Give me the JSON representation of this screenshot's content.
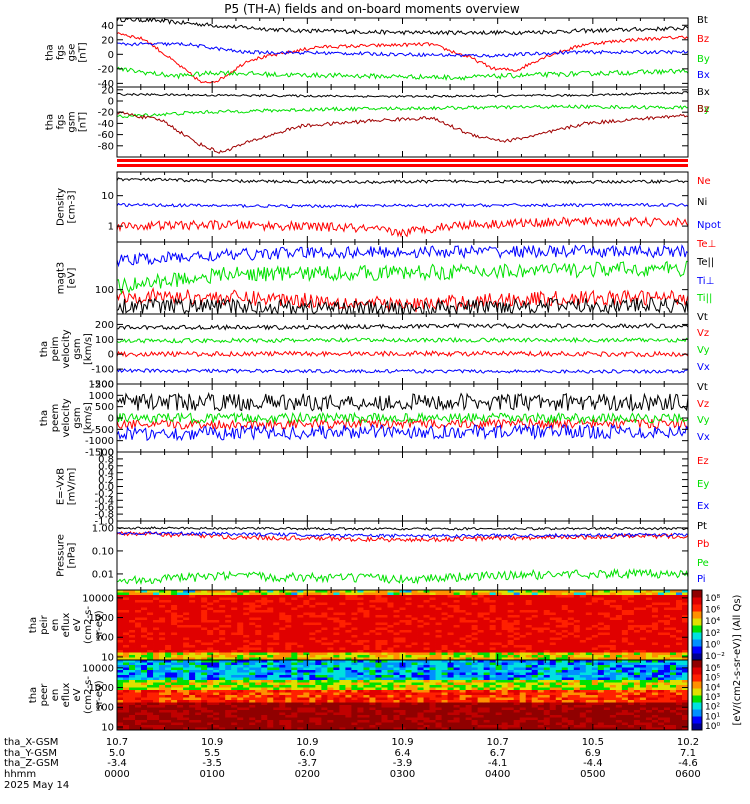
{
  "title": "P5 (TH-A) fields and on-board moments overview",
  "colors": {
    "black": "#000000",
    "red": "#ff0000",
    "green": "#00e000",
    "blue": "#0000ff",
    "darkred": "#a00000"
  },
  "chart_data": [
    {
      "id": "fgs_gse",
      "type": "line",
      "ylabel": [
        "tha",
        "fgs",
        "gse",
        "[nT]"
      ],
      "ylim": [
        -45,
        50
      ],
      "ticks": [
        "40",
        "20",
        "0",
        "-20",
        "-40"
      ],
      "tick_values": [
        40,
        20,
        0,
        -20,
        -40
      ],
      "series": [
        {
          "name": "Bt",
          "color": "black",
          "points": [
            [
              0,
              48
            ],
            [
              0.06,
              47
            ],
            [
              0.12,
              43
            ],
            [
              0.2,
              38
            ],
            [
              0.3,
              33
            ],
            [
              0.5,
              30
            ],
            [
              0.7,
              30
            ],
            [
              0.85,
              33
            ],
            [
              1,
              36
            ]
          ]
        },
        {
          "name": "Bz",
          "color": "red",
          "points": [
            [
              0,
              30
            ],
            [
              0.05,
              20
            ],
            [
              0.1,
              -10
            ],
            [
              0.15,
              -40
            ],
            [
              0.18,
              -35
            ],
            [
              0.23,
              -8
            ],
            [
              0.35,
              10
            ],
            [
              0.55,
              14
            ],
            [
              0.62,
              -5
            ],
            [
              0.66,
              -20
            ],
            [
              0.7,
              -22
            ],
            [
              0.75,
              -3
            ],
            [
              0.82,
              14
            ],
            [
              0.9,
              20
            ],
            [
              1,
              24
            ]
          ]
        },
        {
          "name": "By",
          "color": "green",
          "points": [
            [
              0,
              -20
            ],
            [
              0.1,
              -30
            ],
            [
              0.18,
              -25
            ],
            [
              0.28,
              -28
            ],
            [
              0.45,
              -30
            ],
            [
              0.6,
              -32
            ],
            [
              0.75,
              -28
            ],
            [
              0.9,
              -25
            ],
            [
              1,
              -23
            ]
          ]
        },
        {
          "name": "Bx",
          "color": "blue",
          "points": [
            [
              0,
              14
            ],
            [
              0.12,
              14
            ],
            [
              0.22,
              3
            ],
            [
              0.35,
              2
            ],
            [
              0.5,
              0
            ],
            [
              0.65,
              -2
            ],
            [
              0.8,
              3
            ],
            [
              0.9,
              3
            ],
            [
              1,
              3
            ]
          ]
        }
      ]
    },
    {
      "id": "fgs_gsm",
      "type": "line",
      "ylabel": [
        "tha",
        "fgs",
        "gsm",
        "[nT]"
      ],
      "ylim": [
        -100,
        25
      ],
      "ticks": [
        "20",
        "0",
        "-20",
        "-40",
        "-60",
        "-80"
      ],
      "tick_values": [
        20,
        0,
        -20,
        -40,
        -60,
        -80
      ],
      "series": [
        {
          "name": "Bx",
          "color": "black",
          "points": [
            [
              0,
              12
            ],
            [
              0.2,
              10
            ],
            [
              0.5,
              8
            ],
            [
              0.8,
              10
            ],
            [
              1,
              15
            ]
          ]
        },
        {
          "name": "By",
          "color": "green",
          "points": [
            [
              0,
              -28
            ],
            [
              0.15,
              -20
            ],
            [
              0.35,
              -15
            ],
            [
              0.6,
              -12
            ],
            [
              0.8,
              -10
            ],
            [
              1,
              -12
            ]
          ]
        },
        {
          "name": "Bz",
          "color": "darkred",
          "points": [
            [
              0,
              -20
            ],
            [
              0.08,
              -35
            ],
            [
              0.14,
              -75
            ],
            [
              0.18,
              -92
            ],
            [
              0.24,
              -70
            ],
            [
              0.32,
              -45
            ],
            [
              0.45,
              -35
            ],
            [
              0.55,
              -30
            ],
            [
              0.62,
              -60
            ],
            [
              0.68,
              -72
            ],
            [
              0.74,
              -60
            ],
            [
              0.82,
              -40
            ],
            [
              1,
              -25
            ]
          ]
        }
      ]
    },
    {
      "id": "density",
      "type": "line",
      "ylabel": [
        "Density",
        "[cm-3]"
      ],
      "ylog": true,
      "ylim": [
        0.3,
        60
      ],
      "ticks": [
        "10",
        "1"
      ],
      "tick_values": [
        10,
        1
      ],
      "series": [
        {
          "name": "Ne",
          "color": "red",
          "points": [
            [
              0,
              1
            ],
            [
              0.2,
              1.1
            ],
            [
              0.4,
              0.9
            ],
            [
              0.5,
              0.6
            ],
            [
              0.6,
              1.1
            ],
            [
              0.8,
              1.4
            ],
            [
              1,
              1.3
            ]
          ]
        },
        {
          "name": "Ni",
          "color": "black",
          "points": [
            [
              0,
              35
            ],
            [
              0.2,
              30
            ],
            [
              0.45,
              28
            ],
            [
              0.6,
              30
            ],
            [
              0.8,
              28
            ],
            [
              1,
              30
            ]
          ]
        },
        {
          "name": "Npot",
          "color": "blue",
          "points": [
            [
              0,
              5
            ],
            [
              0.3,
              4.5
            ],
            [
              0.6,
              4.8
            ],
            [
              1,
              5
            ]
          ]
        }
      ]
    },
    {
      "id": "temperature",
      "type": "line",
      "ylabel": [
        "magt3",
        "[eV]"
      ],
      "ylog": true,
      "ylim": [
        40,
        600
      ],
      "ticks": [
        "100"
      ],
      "tick_values": [
        100
      ],
      "series": [
        {
          "name": "Te⊥",
          "color": "red",
          "points": [
            [
              0,
              80
            ],
            [
              0.3,
              70
            ],
            [
              0.5,
              55
            ],
            [
              0.7,
              70
            ],
            [
              1,
              75
            ]
          ]
        },
        {
          "name": "Te||",
          "color": "black",
          "points": [
            [
              0,
              55
            ],
            [
              0.3,
              52
            ],
            [
              0.5,
              48
            ],
            [
              0.7,
              55
            ],
            [
              1,
              55
            ]
          ]
        },
        {
          "name": "Ti⊥",
          "color": "blue",
          "points": [
            [
              0,
              300
            ],
            [
              0.3,
              400
            ],
            [
              0.6,
              420
            ],
            [
              1,
              420
            ]
          ]
        },
        {
          "name": "Ti||",
          "color": "green",
          "points": [
            [
              0,
              110
            ],
            [
              0.2,
              180
            ],
            [
              0.5,
              190
            ],
            [
              0.8,
              210
            ],
            [
              1,
              220
            ]
          ]
        }
      ]
    },
    {
      "id": "peim_velocity",
      "type": "line",
      "ylabel": [
        "tha",
        "peim",
        "velocity",
        "gsm",
        "[km/s]"
      ],
      "ylim": [
        -200,
        270
      ],
      "ticks": [
        "200",
        "100",
        "0",
        "-100",
        "-200"
      ],
      "tick_values": [
        200,
        100,
        0,
        -100,
        -200
      ],
      "series": [
        {
          "name": "Vt",
          "color": "black",
          "points": [
            [
              0,
              180
            ],
            [
              0.3,
              180
            ],
            [
              0.6,
              190
            ],
            [
              1,
              190
            ]
          ]
        },
        {
          "name": "Vz",
          "color": "red",
          "points": [
            [
              0,
              0
            ],
            [
              0.5,
              5
            ],
            [
              1,
              0
            ]
          ]
        },
        {
          "name": "Vy",
          "color": "green",
          "points": [
            [
              0,
              90
            ],
            [
              0.5,
              95
            ],
            [
              1,
              95
            ]
          ]
        },
        {
          "name": "Vx",
          "color": "blue",
          "points": [
            [
              0,
              -110
            ],
            [
              0.5,
              -115
            ],
            [
              1,
              -115
            ]
          ]
        }
      ]
    },
    {
      "id": "peem_velocity",
      "type": "line",
      "ylabel": [
        "tha",
        "peem",
        "velocity",
        "gsm",
        "[km/s]"
      ],
      "ylim": [
        -1500,
        1500
      ],
      "ticks": [
        "1500",
        "1000",
        "500",
        "0",
        "-500",
        "-1000",
        "-1500"
      ],
      "tick_values": [
        1500,
        1000,
        500,
        0,
        -500,
        -1000,
        -1500
      ],
      "series": [
        {
          "name": "Vt",
          "color": "black",
          "points": [
            [
              0,
              700
            ],
            [
              0.5,
              700
            ],
            [
              1,
              700
            ]
          ]
        },
        {
          "name": "Vz",
          "color": "red",
          "points": [
            [
              0,
              -300
            ],
            [
              0.5,
              -250
            ],
            [
              1,
              -250
            ]
          ]
        },
        {
          "name": "Vy",
          "color": "green",
          "points": [
            [
              0,
              0
            ],
            [
              0.5,
              0
            ],
            [
              1,
              0
            ]
          ]
        },
        {
          "name": "Vx",
          "color": "blue",
          "points": [
            [
              0,
              -700
            ],
            [
              0.5,
              -600
            ],
            [
              1,
              -600
            ]
          ]
        }
      ]
    },
    {
      "id": "efield",
      "type": "line",
      "ylabel": [
        "E=-VxB",
        "[mV/m]"
      ],
      "ylim": [
        -1,
        1
      ],
      "ticks": [
        "1.0",
        "0.8",
        "0.6",
        "0.4",
        "0.2",
        "0.0",
        "-0.2",
        "-0.4",
        "-0.6",
        "-0.8",
        "-1.0"
      ],
      "tick_values": [
        1,
        0.8,
        0.6,
        0.4,
        0.2,
        0,
        -0.2,
        -0.4,
        -0.6,
        -0.8,
        -1
      ],
      "series": [
        {
          "name": "Ez",
          "color": "red"
        },
        {
          "name": "Ey",
          "color": "green"
        },
        {
          "name": "Ex",
          "color": "blue"
        }
      ]
    },
    {
      "id": "pressure",
      "type": "line",
      "ylabel": [
        "Pressure",
        "[nPa]"
      ],
      "ylog": true,
      "ylim": [
        0.002,
        2
      ],
      "ticks": [
        "1.00",
        "0.10",
        "0.01"
      ],
      "tick_values": [
        1,
        0.1,
        0.01
      ],
      "series": [
        {
          "name": "Pt",
          "color": "black",
          "points": [
            [
              0,
              1
            ],
            [
              0.5,
              0.9
            ],
            [
              1,
              0.95
            ]
          ]
        },
        {
          "name": "Pb",
          "color": "red",
          "points": [
            [
              0,
              0.6
            ],
            [
              0.2,
              0.4
            ],
            [
              0.5,
              0.3
            ],
            [
              0.8,
              0.4
            ],
            [
              1,
              0.45
            ]
          ]
        },
        {
          "name": "Pe",
          "color": "green",
          "points": [
            [
              0,
              0.005
            ],
            [
              0.2,
              0.008
            ],
            [
              0.5,
              0.006
            ],
            [
              0.8,
              0.01
            ],
            [
              1,
              0.01
            ]
          ]
        },
        {
          "name": "Pi",
          "color": "blue",
          "points": [
            [
              0,
              0.6
            ],
            [
              0.5,
              0.45
            ],
            [
              1,
              0.5
            ]
          ]
        }
      ]
    },
    {
      "id": "peir_spectrogram",
      "type": "heatmap",
      "ylabel": [
        "tha",
        "peir",
        "en",
        "eflux",
        "eV",
        "(cm2-s-",
        "sr-eV)"
      ],
      "ylog": true,
      "ylim": [
        7,
        25000
      ],
      "ticks": [
        "10000",
        "1000",
        "100",
        "10"
      ],
      "tick_values": [
        10000,
        1000,
        100,
        10
      ]
    },
    {
      "id": "peer_spectrogram",
      "type": "heatmap",
      "ylabel": [
        "tha",
        "peer",
        "en",
        "eflux",
        "eV",
        "(cm2-s-",
        "sr-eV)"
      ],
      "ylog": true,
      "ylim": [
        7,
        25000
      ],
      "ticks": [
        "10000",
        "1000",
        "100",
        "10"
      ],
      "tick_values": [
        10000,
        1000,
        100,
        10
      ]
    }
  ],
  "colorbar": {
    "label": "[eV/(cm2-s-sr-eV)] (All Qs)",
    "ticks_top": [
      "10⁸",
      "10⁶",
      "10⁴",
      "10²",
      "10⁰",
      "10⁻²"
    ],
    "ticks_bottom": [
      "10⁶",
      "10⁵",
      "10⁴",
      "10³",
      "10²",
      "10¹",
      "10⁰"
    ]
  },
  "xaxis": {
    "labels": [
      "tha_X-GSM",
      "tha_Y-GSM",
      "tha_Z-GSM",
      "hhmm",
      "2025 May 14"
    ],
    "columns": [
      [
        "10.7",
        "5.0",
        "-3.4",
        "0000"
      ],
      [
        "10.9",
        "5.5",
        "-3.5",
        "0100"
      ],
      [
        "10.9",
        "6.0",
        "-3.7",
        "0200"
      ],
      [
        "10.9",
        "6.4",
        "-3.9",
        "0300"
      ],
      [
        "10.7",
        "6.7",
        "-4.1",
        "0400"
      ],
      [
        "10.5",
        "6.9",
        "-4.4",
        "0500"
      ],
      [
        "10.2",
        "7.1",
        "-4.6",
        "0600"
      ]
    ]
  }
}
